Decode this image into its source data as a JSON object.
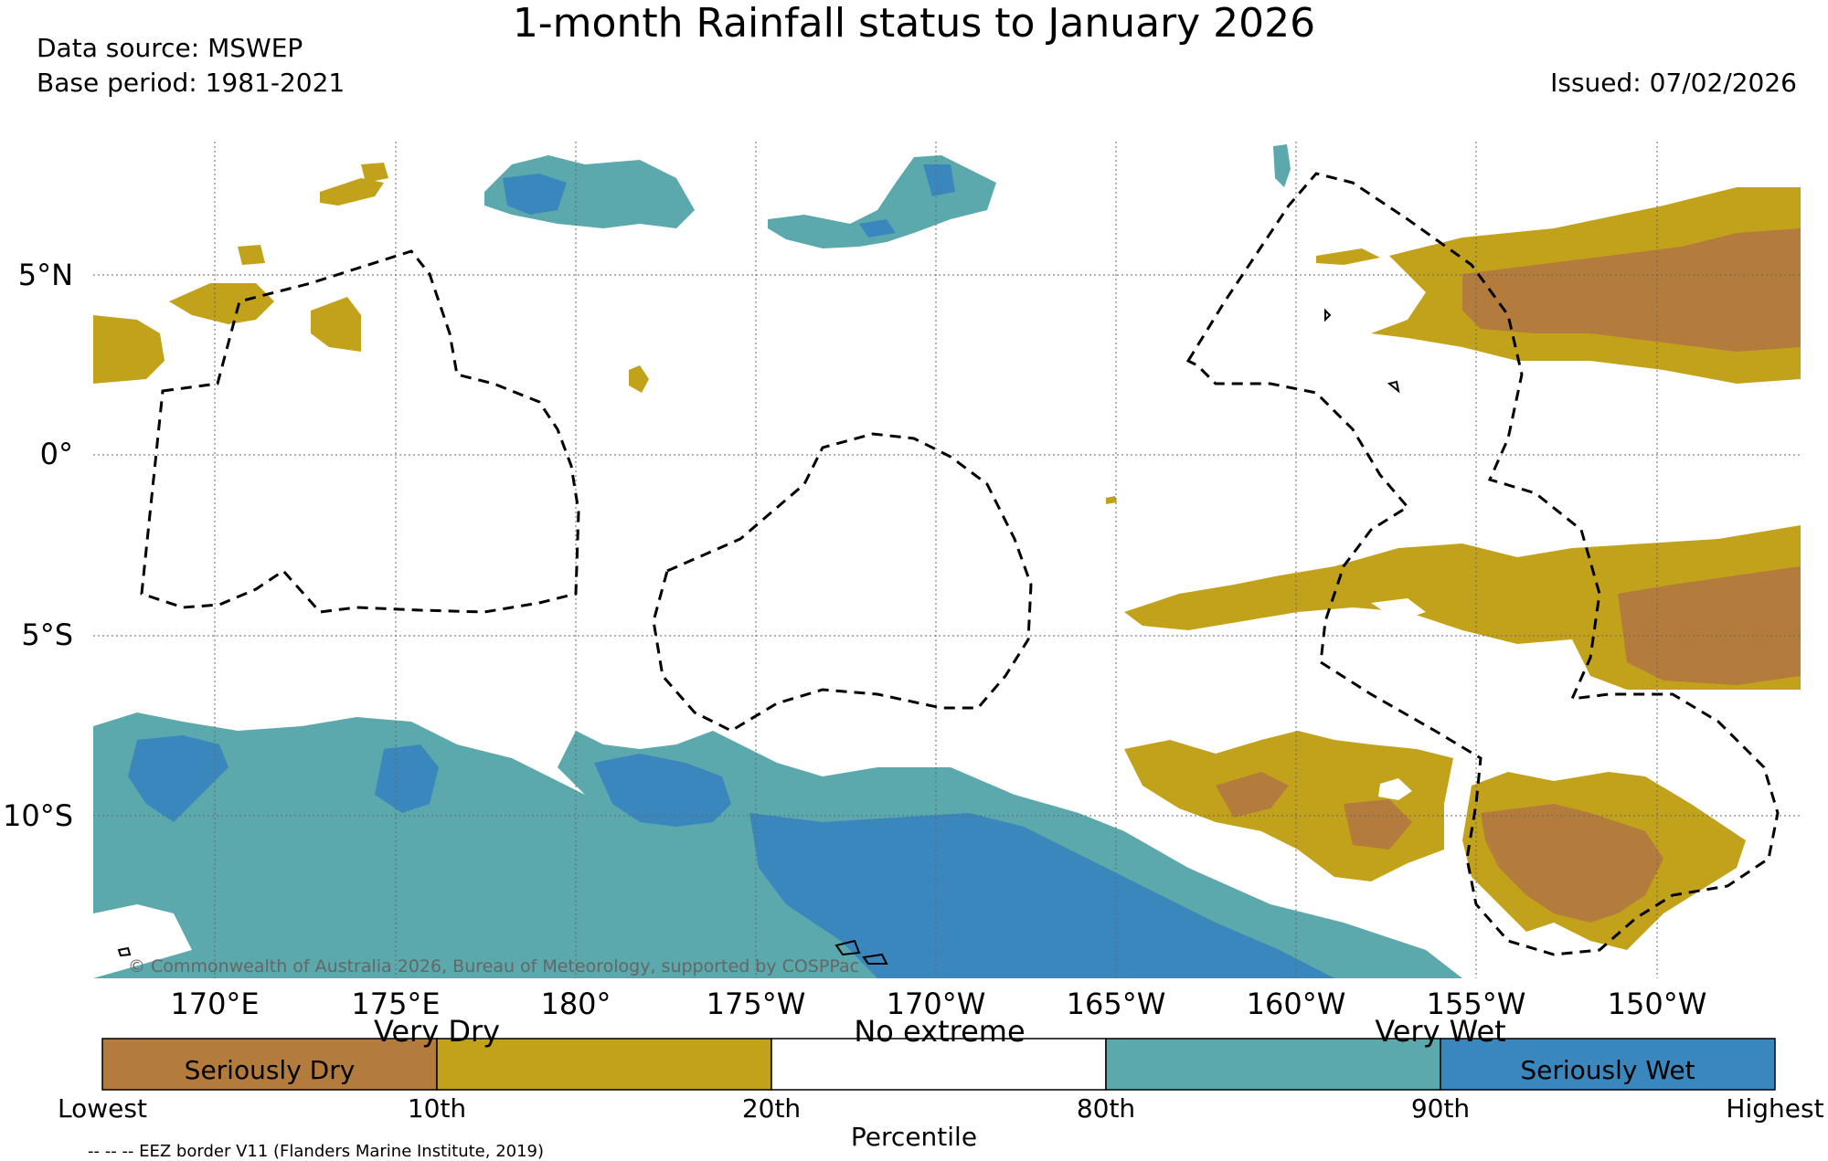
{
  "title": "1-month Rainfall status to January 2026",
  "data_source": "Data source: MSWEP",
  "base_period": "Base period: 1981-2021",
  "issued": "Issued: 07/02/2026",
  "copyright": "© Commonwealth of Australia 2026, Bureau of Meteorology, supported by COSPPac",
  "latitude_labels": [
    "5°N",
    "0°",
    "5°S",
    "10°S"
  ],
  "longitude_labels": [
    "170°E",
    "175°E",
    "180°",
    "175°W",
    "170°W",
    "165°W",
    "160°W",
    "155°W",
    "150°W"
  ],
  "legend": {
    "categories": [
      {
        "name": "Seriously Dry",
        "color": "#b37b3c"
      },
      {
        "name": "Very Dry",
        "color": "#c3a21b"
      },
      {
        "name": "No extreme",
        "color": "#ffffff"
      },
      {
        "name": "Very Wet",
        "color": "#5ba8ad"
      },
      {
        "name": "Seriously Wet",
        "color": "#3a87bd"
      }
    ],
    "ticks": [
      "Lowest",
      "10th",
      "20th",
      "80th",
      "90th",
      "Highest"
    ],
    "axis_label": "Percentile"
  },
  "eez_note": "-- -- -- EEZ border V11 (Flanders Marine Institute, 2019)"
}
